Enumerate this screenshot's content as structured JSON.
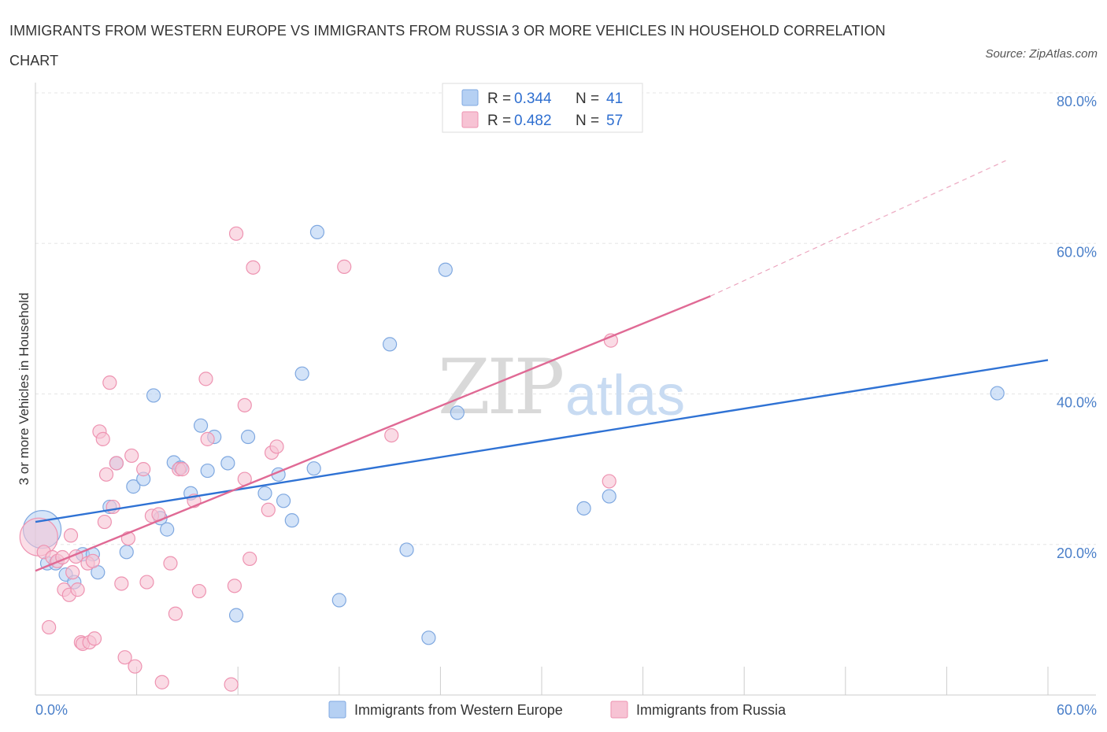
{
  "title": "IMMIGRANTS FROM WESTERN EUROPE VS IMMIGRANTS FROM RUSSIA 3 OR MORE VEHICLES IN HOUSEHOLD CORRELATION CHART",
  "source": "Source: ZipAtlas.com",
  "watermark": {
    "zip": "ZIP",
    "atlas": "atlas"
  },
  "legend": {
    "series1": {
      "r_label": "R = ",
      "r_value": "0.344",
      "n_label": "N = ",
      "n_value": "41"
    },
    "series2": {
      "r_label": "R = ",
      "r_value": "0.482",
      "n_label": "N = ",
      "n_value": "57"
    }
  },
  "colors": {
    "blue_fill": "#b5d0f3",
    "blue_stroke": "#7fa8e0",
    "blue_line": "#2f72d4",
    "pink_fill": "#f7c3d4",
    "pink_stroke": "#ee93b1",
    "pink_line": "#e06a95",
    "grid": "#e5e5e5",
    "tick": "#4a7fc9"
  },
  "chart_data": {
    "type": "scatter",
    "title": "IMMIGRANTS FROM WESTERN EUROPE VS IMMIGRANTS FROM RUSSIA 3 OR MORE VEHICLES IN HOUSEHOLD CORRELATION CHART",
    "xlabel": "",
    "ylabel": "3 or more Vehicles in Household",
    "xlim": [
      0,
      60
    ],
    "ylim": [
      0,
      80
    ],
    "x_tick_labels": [
      "0.0%",
      "60.0%"
    ],
    "y_ticks": [
      20,
      40,
      60,
      80
    ],
    "y_tick_labels": [
      "20.0%",
      "40.0%",
      "60.0%",
      "80.0%"
    ],
    "legend_position": "top-center",
    "series": [
      {
        "name": "Immigrants from Western Europe",
        "color": "blue",
        "r": 0.344,
        "n": 41,
        "trend": {
          "x": [
            0,
            60
          ],
          "y": [
            23.0,
            44.5
          ],
          "dashed_to": null
        },
        "points": [
          {
            "x": 0.4,
            "y": 22.0,
            "big": true
          },
          {
            "x": 0.7,
            "y": 17.5
          },
          {
            "x": 1.2,
            "y": 17.5
          },
          {
            "x": 1.8,
            "y": 16.0
          },
          {
            "x": 2.3,
            "y": 15.0
          },
          {
            "x": 2.8,
            "y": 18.7
          },
          {
            "x": 3.4,
            "y": 18.7
          },
          {
            "x": 3.7,
            "y": 16.3
          },
          {
            "x": 4.4,
            "y": 25.0
          },
          {
            "x": 4.8,
            "y": 30.8
          },
          {
            "x": 5.4,
            "y": 19.0
          },
          {
            "x": 5.8,
            "y": 27.7
          },
          {
            "x": 6.4,
            "y": 28.7
          },
          {
            "x": 7.0,
            "y": 39.8
          },
          {
            "x": 7.4,
            "y": 23.5
          },
          {
            "x": 7.8,
            "y": 22.0
          },
          {
            "x": 8.2,
            "y": 30.9
          },
          {
            "x": 8.6,
            "y": 30.2
          },
          {
            "x": 9.2,
            "y": 26.8
          },
          {
            "x": 9.8,
            "y": 35.8
          },
          {
            "x": 10.2,
            "y": 29.8
          },
          {
            "x": 10.6,
            "y": 34.3
          },
          {
            "x": 11.4,
            "y": 30.8
          },
          {
            "x": 11.9,
            "y": 10.6
          },
          {
            "x": 12.6,
            "y": 34.3
          },
          {
            "x": 13.6,
            "y": 26.8
          },
          {
            "x": 14.4,
            "y": 29.3
          },
          {
            "x": 14.7,
            "y": 25.8
          },
          {
            "x": 15.2,
            "y": 23.2
          },
          {
            "x": 15.8,
            "y": 42.7
          },
          {
            "x": 16.5,
            "y": 30.1
          },
          {
            "x": 16.7,
            "y": 61.5
          },
          {
            "x": 18.0,
            "y": 12.6
          },
          {
            "x": 21.0,
            "y": 46.6
          },
          {
            "x": 22.0,
            "y": 19.3
          },
          {
            "x": 23.3,
            "y": 7.6
          },
          {
            "x": 24.3,
            "y": 56.5
          },
          {
            "x": 25.0,
            "y": 37.5
          },
          {
            "x": 32.5,
            "y": 24.8
          },
          {
            "x": 34.0,
            "y": 26.4
          },
          {
            "x": 57.0,
            "y": 40.1
          }
        ]
      },
      {
        "name": "Immigrants from Russia",
        "color": "pink",
        "r": 0.482,
        "n": 57,
        "trend": {
          "x": [
            0,
            40
          ],
          "y": [
            16.5,
            53.0
          ],
          "dashed_to": {
            "x": 57.5,
            "y": 71.0
          }
        },
        "points": [
          {
            "x": 0.2,
            "y": 21.0,
            "big": true
          },
          {
            "x": 0.5,
            "y": 19.0
          },
          {
            "x": 0.8,
            "y": 9.0
          },
          {
            "x": 1.0,
            "y": 18.3
          },
          {
            "x": 1.3,
            "y": 17.8
          },
          {
            "x": 1.6,
            "y": 18.3
          },
          {
            "x": 1.7,
            "y": 14.0
          },
          {
            "x": 2.0,
            "y": 13.3
          },
          {
            "x": 2.1,
            "y": 21.2
          },
          {
            "x": 2.2,
            "y": 16.3
          },
          {
            "x": 2.4,
            "y": 18.4
          },
          {
            "x": 2.5,
            "y": 14.0
          },
          {
            "x": 2.7,
            "y": 7.0
          },
          {
            "x": 2.8,
            "y": 6.8
          },
          {
            "x": 3.1,
            "y": 17.5
          },
          {
            "x": 3.2,
            "y": 7.0
          },
          {
            "x": 3.4,
            "y": 17.8
          },
          {
            "x": 3.5,
            "y": 7.5
          },
          {
            "x": 3.8,
            "y": 35.0
          },
          {
            "x": 4.0,
            "y": 34.0
          },
          {
            "x": 4.1,
            "y": 23.0
          },
          {
            "x": 4.2,
            "y": 29.3
          },
          {
            "x": 4.4,
            "y": 41.5
          },
          {
            "x": 4.6,
            "y": 25.0
          },
          {
            "x": 4.8,
            "y": 30.8
          },
          {
            "x": 5.1,
            "y": 14.8
          },
          {
            "x": 5.3,
            "y": 5.0
          },
          {
            "x": 5.5,
            "y": 20.8
          },
          {
            "x": 5.7,
            "y": 31.8
          },
          {
            "x": 5.9,
            "y": 3.8
          },
          {
            "x": 6.4,
            "y": 30.0
          },
          {
            "x": 6.6,
            "y": 15.0
          },
          {
            "x": 6.9,
            "y": 23.8
          },
          {
            "x": 7.3,
            "y": 24.0
          },
          {
            "x": 7.5,
            "y": 1.7
          },
          {
            "x": 8.3,
            "y": 10.8
          },
          {
            "x": 8.5,
            "y": 30.0
          },
          {
            "x": 8.7,
            "y": 30.0
          },
          {
            "x": 9.4,
            "y": 25.8
          },
          {
            "x": 9.7,
            "y": 13.8
          },
          {
            "x": 10.1,
            "y": 42.0
          },
          {
            "x": 10.2,
            "y": 34.0
          },
          {
            "x": 11.6,
            "y": 1.4
          },
          {
            "x": 11.8,
            "y": 14.5
          },
          {
            "x": 11.9,
            "y": 61.3
          },
          {
            "x": 12.4,
            "y": 28.7
          },
          {
            "x": 12.4,
            "y": 38.5
          },
          {
            "x": 12.7,
            "y": 18.1
          },
          {
            "x": 12.9,
            "y": 56.8
          },
          {
            "x": 13.8,
            "y": 24.6
          },
          {
            "x": 14.0,
            "y": 32.2
          },
          {
            "x": 14.3,
            "y": 33.0
          },
          {
            "x": 18.3,
            "y": 56.9
          },
          {
            "x": 21.1,
            "y": 34.5
          },
          {
            "x": 34.0,
            "y": 28.4
          },
          {
            "x": 34.1,
            "y": 47.1
          },
          {
            "x": 8.0,
            "y": 17.5
          }
        ]
      }
    ]
  },
  "bottom_legend": {
    "series1": "Immigrants from Western Europe",
    "series2": "Immigrants from Russia"
  }
}
